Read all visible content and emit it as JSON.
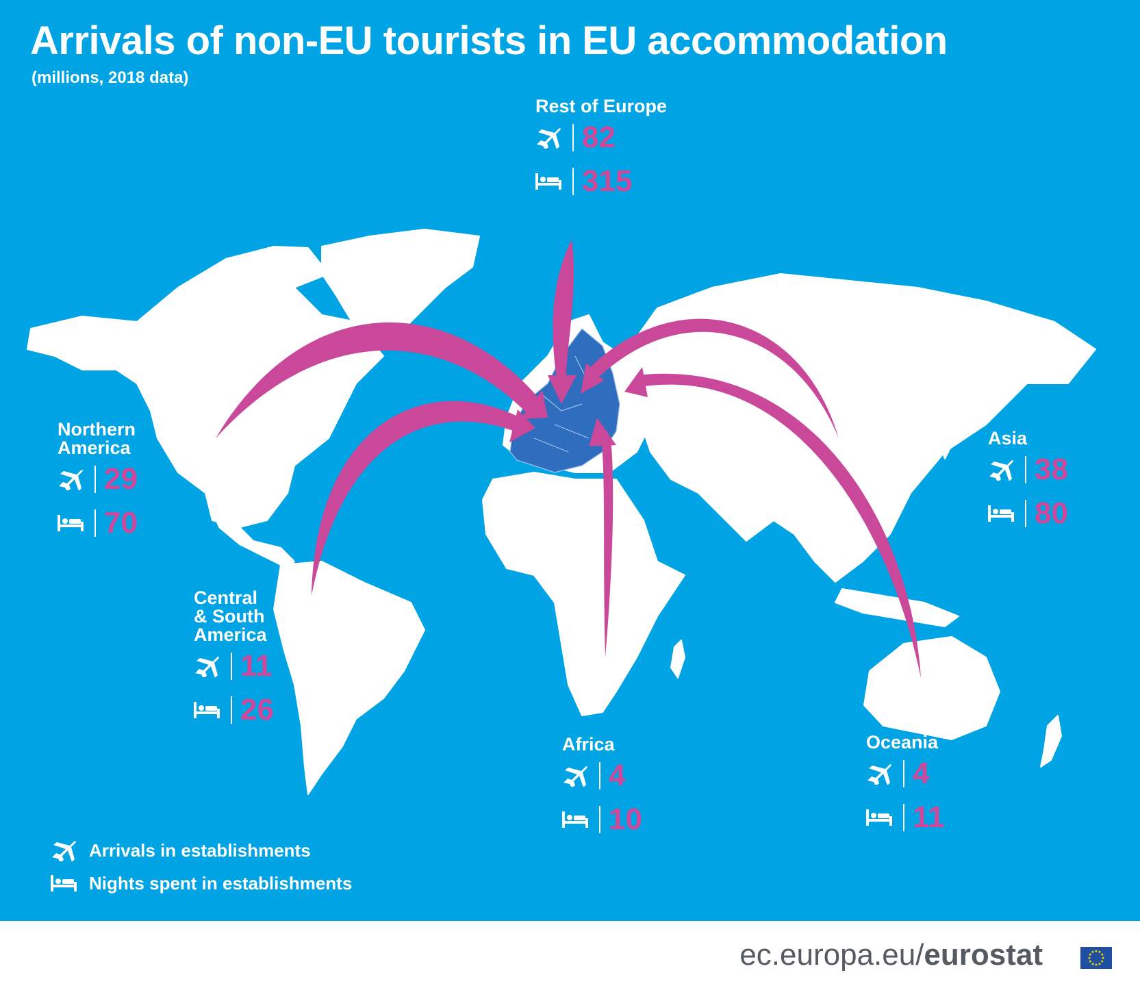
{
  "title": "Arrivals of non-EU tourists in EU accommodation",
  "subtitle": "(millions, 2018 data)",
  "colors": {
    "ocean": "#00a3e4",
    "land": "#ffffff",
    "eu_land": "#2f6dbf",
    "arrow": "#c9489a",
    "value": "#d0479a"
  },
  "regions": [
    {
      "key": "rest_of_europe",
      "name": "Rest of Europe",
      "arrivals": "82",
      "nights": "315"
    },
    {
      "key": "northern_america",
      "name": "Northern\nAmerica",
      "arrivals": "29",
      "nights": "70"
    },
    {
      "key": "asia",
      "name": "Asia",
      "arrivals": "38",
      "nights": "80"
    },
    {
      "key": "central_south_america",
      "name": "Central\n& South\nAmerica",
      "arrivals": "11",
      "nights": "26"
    },
    {
      "key": "africa",
      "name": "Africa",
      "arrivals": "4",
      "nights": "10"
    },
    {
      "key": "oceania",
      "name": "Oceania",
      "arrivals": "4",
      "nights": "11"
    }
  ],
  "icons": {
    "arrivals": "airplane-icon",
    "nights": "bed-icon"
  },
  "legend": {
    "arrivals_label": "Arrivals in establishments",
    "nights_label": "Nights spent in establishments"
  },
  "footer": {
    "site": "ec.europa.eu/",
    "brand": "eurostat"
  }
}
